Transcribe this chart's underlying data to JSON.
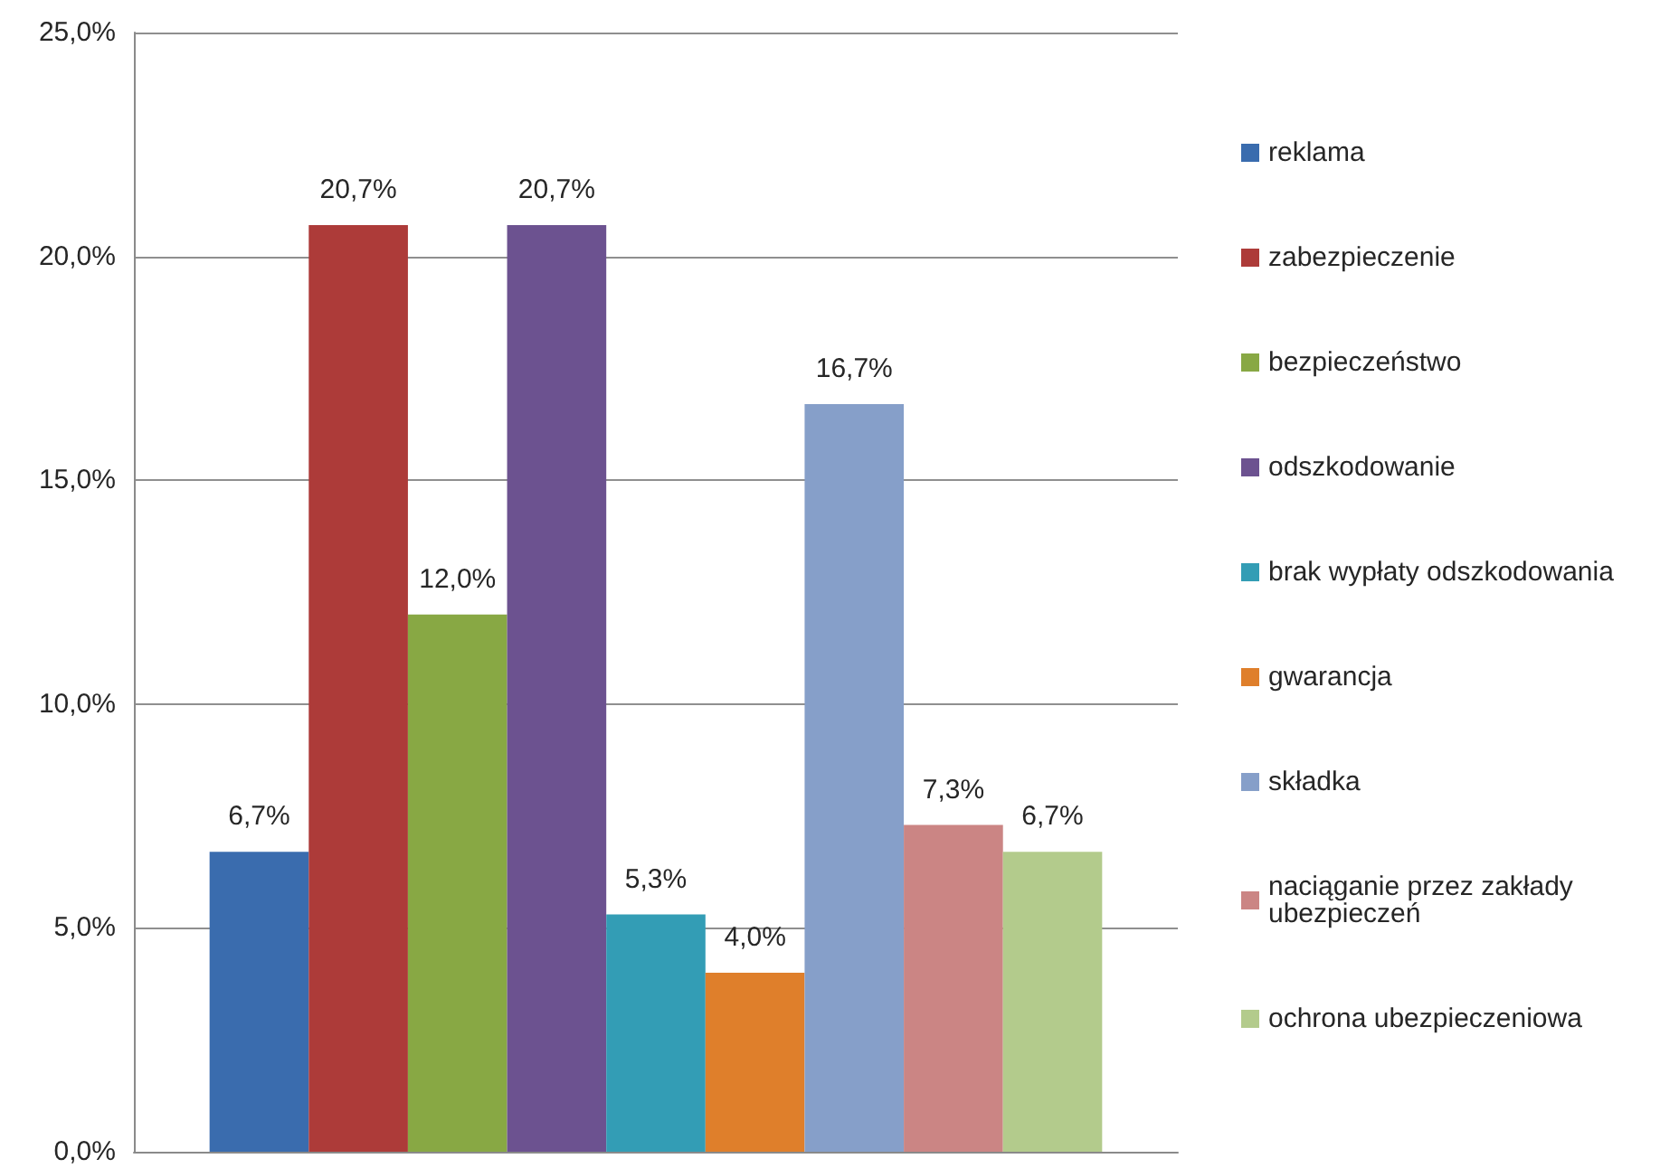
{
  "chart_data": {
    "type": "bar",
    "categories": [
      null
    ],
    "series": [
      {
        "name": "reklama",
        "color": "#3a6cae",
        "values": [
          6.7
        ],
        "value_labels": [
          "6,7%"
        ]
      },
      {
        "name": "zabezpieczenie",
        "color": "#ad3b39",
        "values": [
          20.7
        ],
        "value_labels": [
          "20,7%"
        ]
      },
      {
        "name": "bezpieczeństwo",
        "color": "#88a844",
        "values": [
          12.0
        ],
        "value_labels": [
          "12,0%"
        ]
      },
      {
        "name": "odszkodowanie",
        "color": "#6c5290",
        "values": [
          20.7
        ],
        "value_labels": [
          "20,7%"
        ]
      },
      {
        "name": "brak wypłaty odszkodowania",
        "color": "#339db5",
        "values": [
          5.3
        ],
        "value_labels": [
          "5,3%"
        ]
      },
      {
        "name": "gwarancja",
        "color": "#df7f2b",
        "values": [
          4.0
        ],
        "value_labels": [
          "4,0%"
        ]
      },
      {
        "name": "składka",
        "color": "#869fc9",
        "values": [
          16.7
        ],
        "value_labels": [
          "16,7%"
        ]
      },
      {
        "name": "naciąganie przez zakłady ubezpieczeń",
        "color": "#cb8584",
        "values": [
          7.3
        ],
        "value_labels": [
          "7,3%"
        ]
      },
      {
        "name": "ochrona ubezpieczeniowa",
        "color": "#b3cb8c",
        "values": [
          6.7
        ],
        "value_labels": [
          "6,7%"
        ]
      }
    ],
    "ylim": [
      0,
      25
    ],
    "yticks": [
      {
        "value": 0,
        "label": "0,0%"
      },
      {
        "value": 5,
        "label": "5,0%"
      },
      {
        "value": 10,
        "label": "10,0%"
      },
      {
        "value": 15,
        "label": "15,0%"
      },
      {
        "value": 20,
        "label": "20,0%"
      },
      {
        "value": 25,
        "label": "25,0%"
      }
    ],
    "grid": "y",
    "legend": "right"
  }
}
